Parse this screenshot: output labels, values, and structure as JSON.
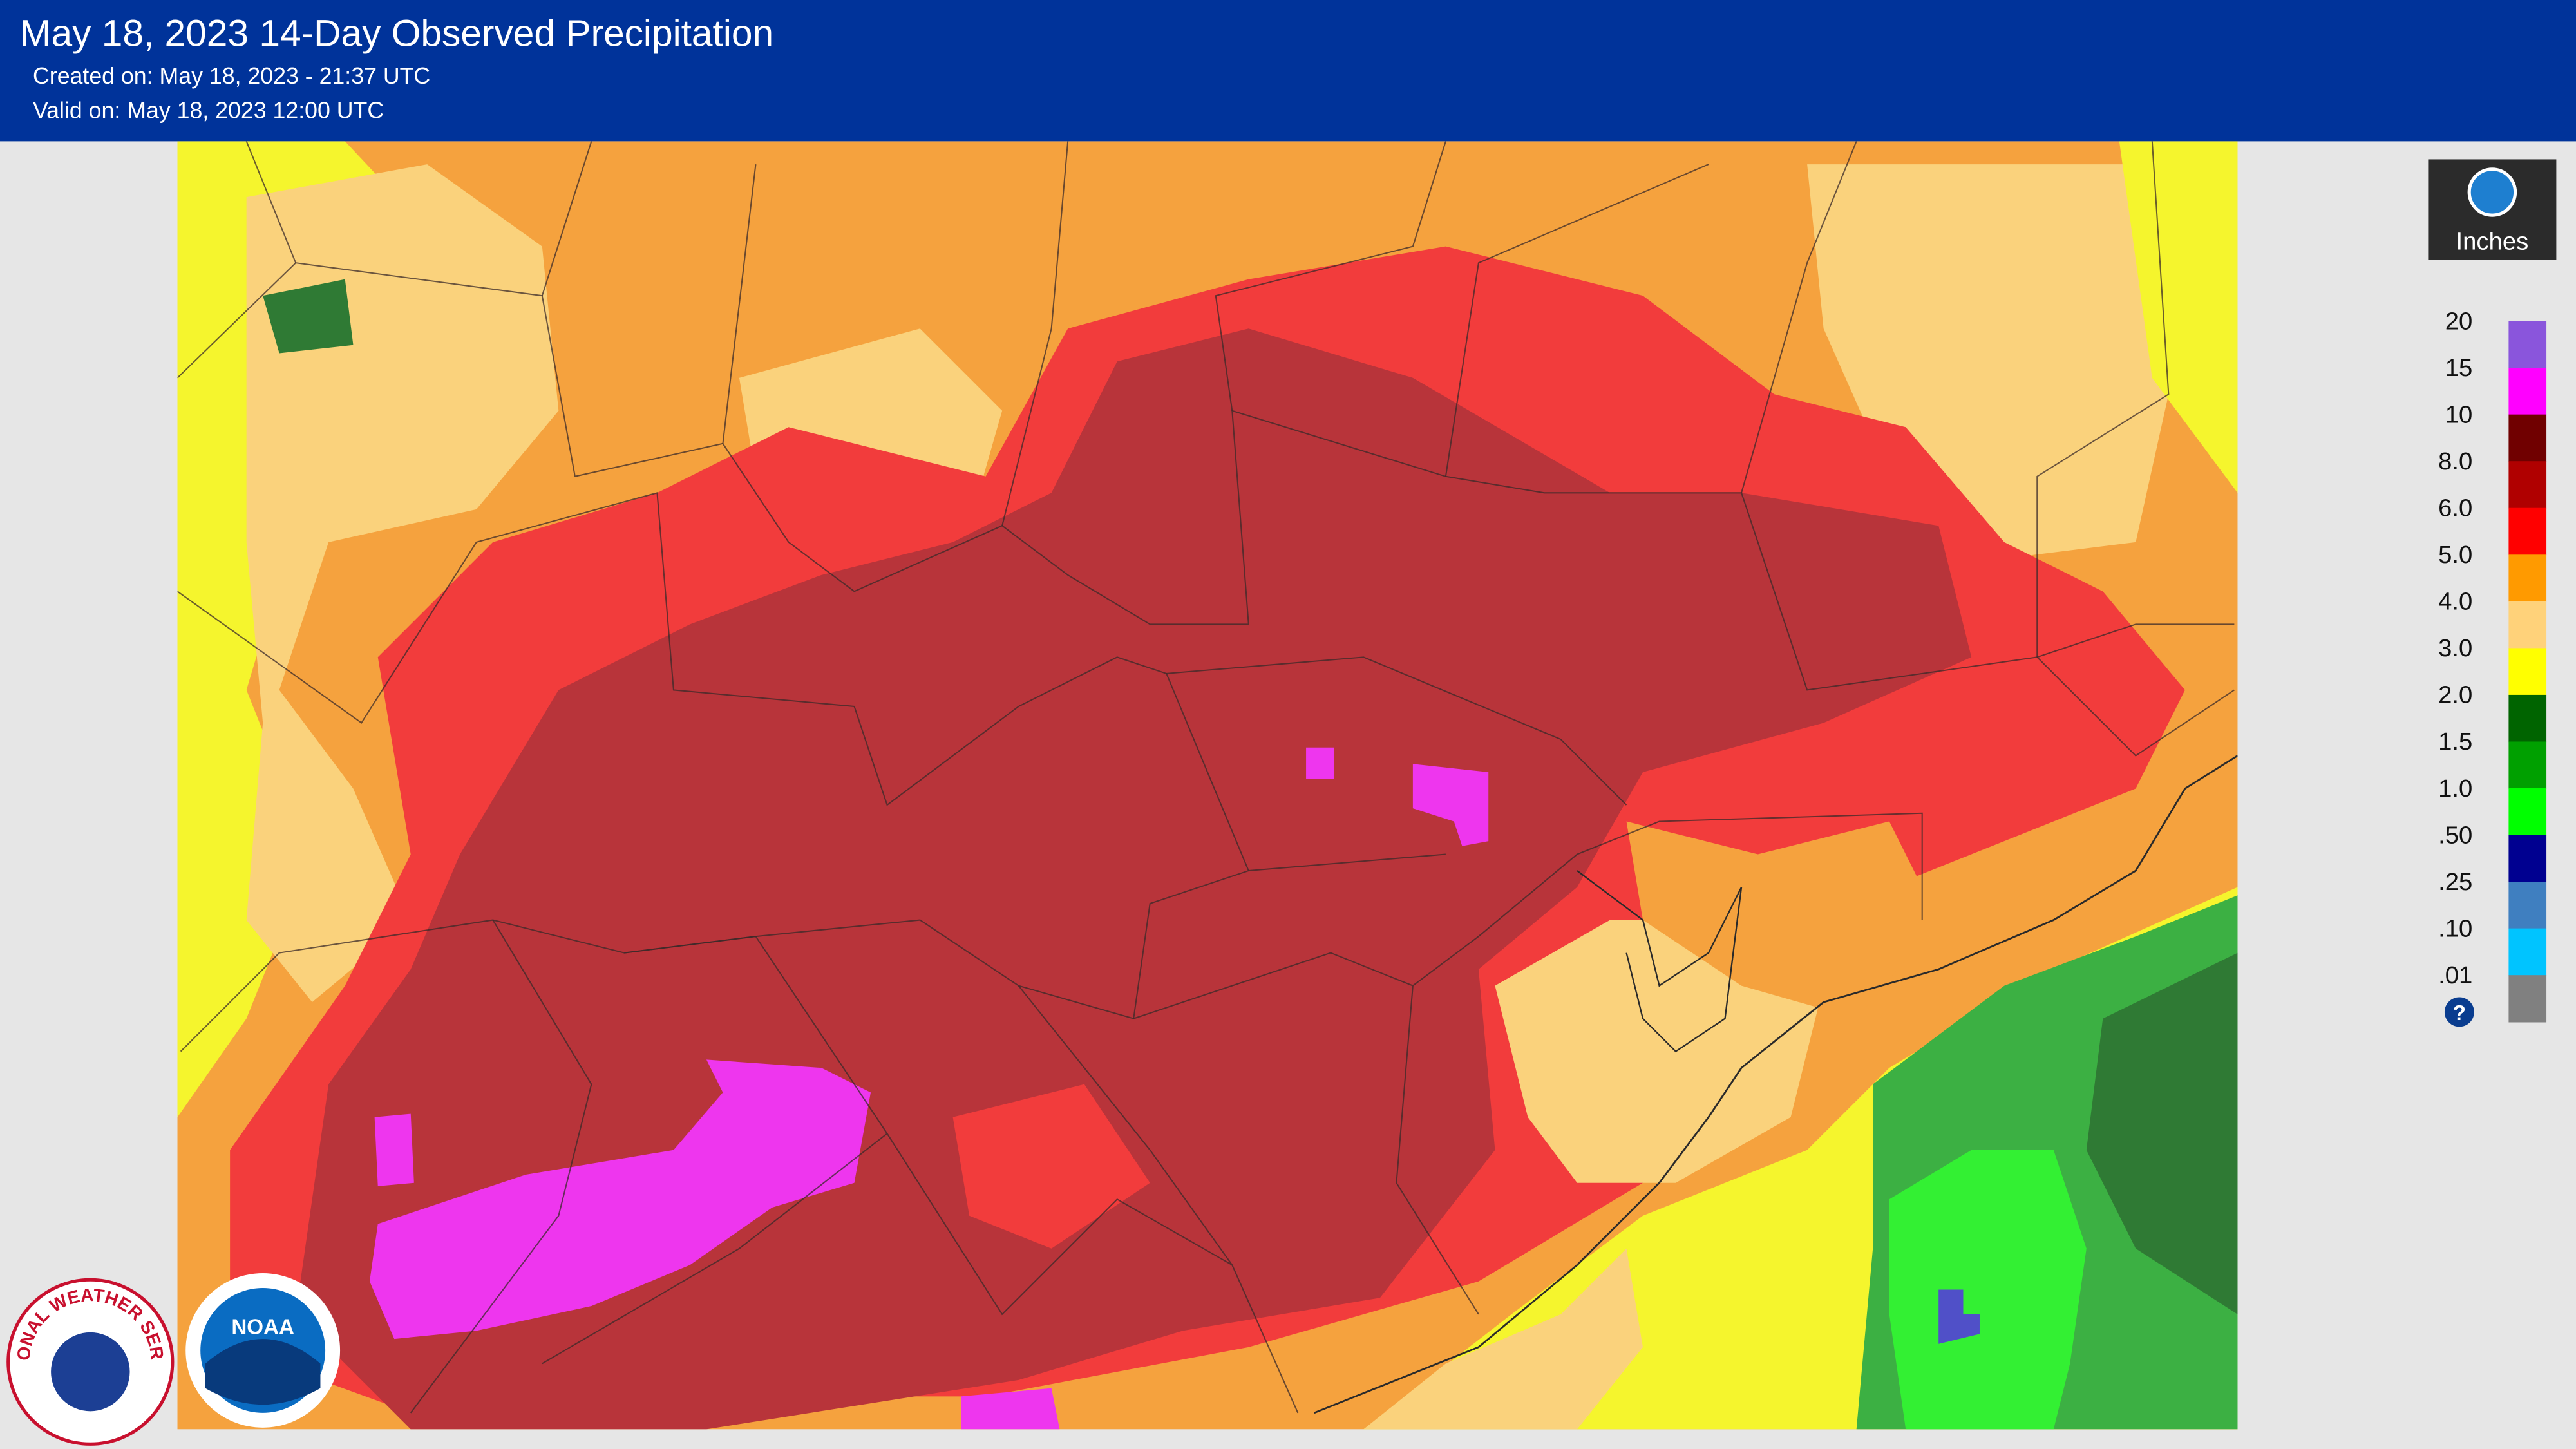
{
  "header": {
    "title": "May 18, 2023 14-Day Observed Precipitation",
    "created": "Created on: May 18, 2023 - 21:37 UTC",
    "valid": "Valid on: May 18, 2023 12:00 UTC"
  },
  "legend": {
    "unit": "Inches",
    "labels": [
      "20",
      "15",
      "10",
      "8.0",
      "6.0",
      "5.0",
      "4.0",
      "3.0",
      "2.0",
      "1.5",
      "1.0",
      ".50",
      ".25",
      ".10",
      ".01"
    ],
    "colors": [
      "#e6e6e6",
      "#8a55dc",
      "#ff00ff",
      "#700000",
      "#b00000",
      "#ff0000",
      "#ff9a00",
      "#ffd27a",
      "#ffff00",
      "#006400",
      "#00a000",
      "#00ff00",
      "#000090",
      "#3f7fc0",
      "#00c4ff",
      "#808080"
    ],
    "help": "?"
  },
  "logos": {
    "nws": "NATIONAL WEATHER SERVICE",
    "noaa": "NOAA"
  }
}
